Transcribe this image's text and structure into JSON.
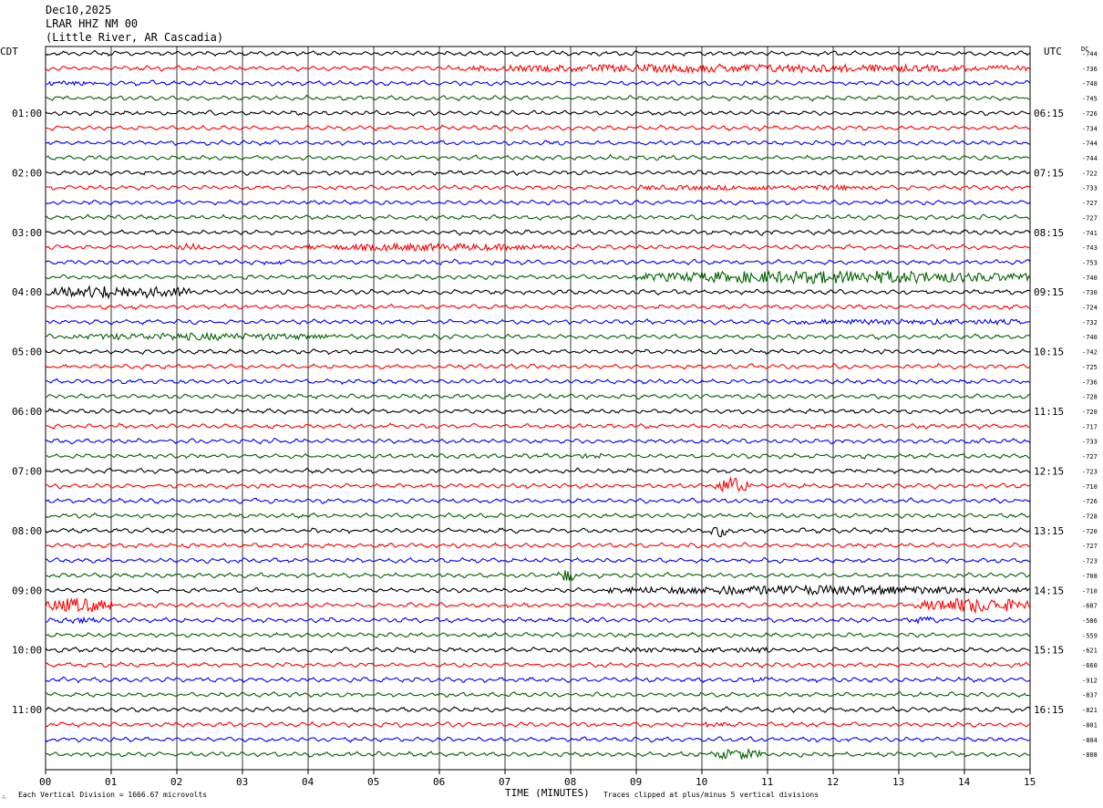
{
  "header": {
    "date": "Dec10,2025",
    "station": "LRAR HHZ NM 00",
    "location": "(Little River, AR Cascadia)"
  },
  "left_tz": "CDT",
  "right_tz": "UTC",
  "dc_label": "DC",
  "footer": {
    "vertical_division": "Each Vertical Division = 1666.67 microvolts",
    "xlabel": "TIME (MINUTES)",
    "clip_note": "Traces clipped at plus/minus 5 vertical divisions"
  },
  "colors": {
    "trace_cycle": [
      "#000000",
      "#ff0000",
      "#0000ff",
      "#006400"
    ],
    "grid": "#000000",
    "background": "#ffffff"
  },
  "chart_data": {
    "type": "line",
    "title": "LRAR HHZ NM 00",
    "xlabel": "TIME (MINUTES)",
    "xlim": [
      0,
      15
    ],
    "x_ticks": [
      "00",
      "01",
      "02",
      "03",
      "04",
      "05",
      "06",
      "07",
      "08",
      "09",
      "10",
      "11",
      "12",
      "13",
      "14",
      "15"
    ],
    "left_hour_labels": [
      "01:00",
      "02:00",
      "03:00",
      "04:00",
      "05:00",
      "06:00",
      "07:00",
      "08:00",
      "09:00",
      "10:00",
      "11:00"
    ],
    "right_hour_labels": [
      "06:15",
      "07:15",
      "08:15",
      "09:15",
      "10:15",
      "11:15",
      "12:15",
      "13:15",
      "14:15",
      "15:15",
      "16:15"
    ],
    "dc_offsets": [
      -744,
      -736,
      -748,
      -745,
      -726,
      -734,
      -744,
      -744,
      -722,
      -733,
      -727,
      -727,
      -741,
      -743,
      -753,
      -740,
      -730,
      -724,
      -732,
      -740,
      -742,
      -725,
      -736,
      -728,
      -720,
      -717,
      -733,
      -727,
      -723,
      -710,
      -726,
      -728,
      -720,
      -727,
      -723,
      -708,
      -710,
      -687,
      -586,
      -559,
      -621,
      -660,
      -912,
      -837,
      -821,
      -801,
      -804,
      -808
    ],
    "series": [
      {
        "bursts": []
      },
      {
        "bursts": [
          {
            "start": 6.3,
            "end": 15.0,
            "amp": 4.5
          }
        ]
      },
      {
        "bursts": [
          {
            "start": 0.0,
            "end": 1.0,
            "amp": 2.0
          }
        ]
      },
      {
        "bursts": []
      },
      {
        "bursts": []
      },
      {
        "bursts": []
      },
      {
        "bursts": []
      },
      {
        "bursts": []
      },
      {
        "bursts": []
      },
      {
        "bursts": [
          {
            "start": 9.0,
            "end": 12.5,
            "amp": 2.0
          }
        ]
      },
      {
        "bursts": []
      },
      {
        "bursts": []
      },
      {
        "bursts": []
      },
      {
        "bursts": [
          {
            "start": 2.0,
            "end": 2.4,
            "amp": 4.0
          },
          {
            "start": 4.0,
            "end": 7.8,
            "amp": 4.0
          }
        ]
      },
      {
        "bursts": [
          {
            "start": 3.3,
            "end": 3.6,
            "amp": 2.5
          }
        ]
      },
      {
        "bursts": [
          {
            "start": 9.0,
            "end": 15.0,
            "amp": 7.0
          }
        ]
      },
      {
        "bursts": [
          {
            "start": 0.0,
            "end": 2.2,
            "amp": 7.0
          }
        ]
      },
      {
        "bursts": []
      },
      {
        "bursts": [
          {
            "start": 11.5,
            "end": 15.0,
            "amp": 3.0
          }
        ]
      },
      {
        "bursts": [
          {
            "start": 0.3,
            "end": 4.5,
            "amp": 4.0
          }
        ]
      },
      {
        "bursts": []
      },
      {
        "bursts": []
      },
      {
        "bursts": []
      },
      {
        "bursts": []
      },
      {
        "bursts": []
      },
      {
        "bursts": []
      },
      {
        "bursts": []
      },
      {
        "bursts": [
          {
            "start": 8.2,
            "end": 8.5,
            "amp": 3.0
          }
        ]
      },
      {
        "bursts": []
      },
      {
        "bursts": [
          {
            "start": 10.2,
            "end": 10.7,
            "amp": 9.0
          }
        ]
      },
      {
        "bursts": []
      },
      {
        "bursts": []
      },
      {
        "bursts": [
          {
            "start": 10.1,
            "end": 10.4,
            "amp": 7.0
          }
        ]
      },
      {
        "bursts": []
      },
      {
        "bursts": []
      },
      {
        "bursts": [
          {
            "start": 7.8,
            "end": 8.1,
            "amp": 7.0
          }
        ]
      },
      {
        "bursts": [
          {
            "start": 8.5,
            "end": 15.0,
            "amp": 5.0
          }
        ]
      },
      {
        "bursts": [
          {
            "start": 0.0,
            "end": 1.0,
            "amp": 8.0
          },
          {
            "start": 13.3,
            "end": 15.0,
            "amp": 8.0
          }
        ]
      },
      {
        "bursts": [
          {
            "start": 0.2,
            "end": 0.8,
            "amp": 3.5
          },
          {
            "start": 13.1,
            "end": 13.7,
            "amp": 3.5
          }
        ]
      },
      {
        "bursts": []
      },
      {
        "bursts": [
          {
            "start": 8.8,
            "end": 11.0,
            "amp": 2.5
          }
        ]
      },
      {
        "bursts": []
      },
      {
        "bursts": [
          {
            "start": 10.7,
            "end": 11.0,
            "amp": 3.0
          }
        ]
      },
      {
        "bursts": []
      },
      {
        "bursts": []
      },
      {
        "bursts": [
          {
            "start": 10.0,
            "end": 10.4,
            "amp": 3.0
          }
        ]
      },
      {
        "bursts": []
      },
      {
        "bursts": [
          {
            "start": 10.2,
            "end": 10.9,
            "amp": 6.0
          }
        ]
      }
    ]
  }
}
